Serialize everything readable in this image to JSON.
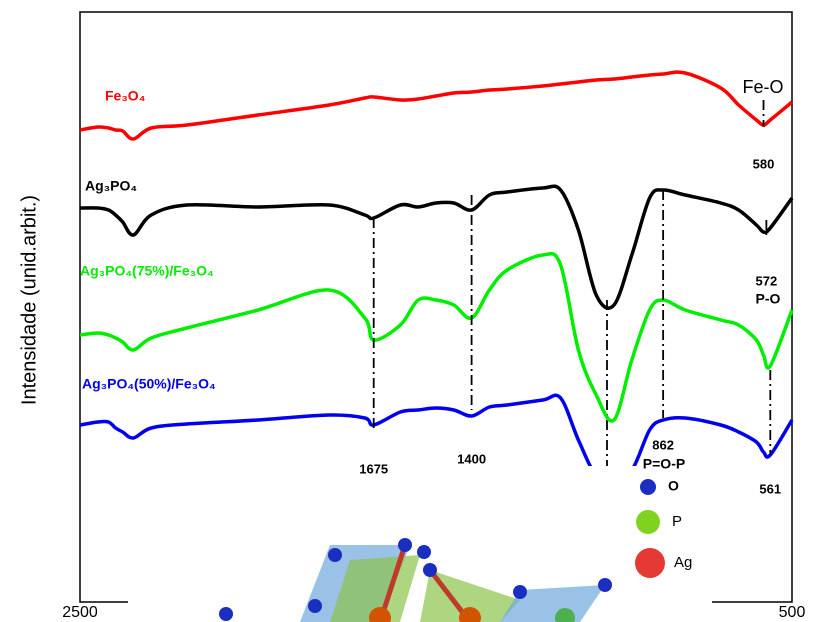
{
  "chart_data": {
    "type": "line",
    "y_label": "Intensidade (unid.arbit.)",
    "xlim": [
      2500,
      500
    ],
    "xticks": [
      2500,
      500
    ],
    "ylim": [
      0,
      590
    ],
    "x": [
      2500,
      2450,
      2420,
      2400,
      2380,
      2350,
      2300,
      2200,
      2000,
      1800,
      1700,
      1675,
      1600,
      1550,
      1500,
      1450,
      1400,
      1350,
      1300,
      1200,
      1150,
      1100,
      1050,
      1000,
      950,
      900,
      862,
      800,
      700,
      650,
      600,
      580,
      561,
      500
    ],
    "series": [
      {
        "name": "Fe₃O₄",
        "color": "#ff0000",
        "values": [
          472,
          475,
          474,
          472,
          471,
          463,
          474,
          477,
          487,
          497,
          504,
          505,
          502,
          503,
          506,
          509,
          510,
          512,
          513,
          516,
          518,
          520,
          522,
          523,
          525,
          527,
          528,
          529,
          514,
          497,
          482,
          477,
          482,
          500
        ]
      },
      {
        "name": "Ag₃PO₄",
        "color": "#000000",
        "values": [
          394,
          394,
          392,
          387,
          380,
          367,
          387,
          397,
          395,
          397,
          387,
          384,
          397,
          395,
          399,
          399,
          392,
          407,
          410,
          414,
          412,
          372,
          307,
          297,
          347,
          404,
          412,
          407,
          399,
          392,
          377,
          370,
          374,
          404
        ]
      },
      {
        "name": "Ag₃PO₄(75%)/Fe₃O₄",
        "color": "#00ee00",
        "values": [
          267,
          269,
          267,
          264,
          260,
          252,
          264,
          274,
          292,
          312,
          284,
          262,
          277,
          302,
          302,
          297,
          284,
          312,
          332,
          347,
          337,
          252,
          207,
          182,
          242,
          292,
          302,
          292,
          282,
          277,
          262,
          247,
          236,
          292
        ]
      },
      {
        "name": "Ag₃PO₄(50%)/Fe₃O₄",
        "color": "#0000ee",
        "values": [
          177,
          180,
          180,
          174,
          170,
          164,
          174,
          178,
          182,
          187,
          184,
          177,
          190,
          192,
          194,
          192,
          186,
          195,
          197,
          202,
          204,
          162,
          127,
          127,
          132,
          172,
          182,
          184,
          177,
          170,
          160,
          150,
          147,
          182
        ]
      }
    ],
    "peaks": [
      1675,
      1400,
      862,
      580,
      572,
      561
    ],
    "bands": [
      "Fe-O",
      "P-O",
      "P=O-P"
    ],
    "inset_legend": [
      "O",
      "P",
      "Ag"
    ]
  }
}
